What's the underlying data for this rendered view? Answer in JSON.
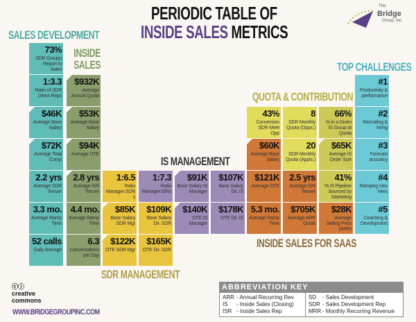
{
  "title": {
    "line1": "PERIODIC TABLE OF",
    "line2_a": "INSIDE SALES",
    "line2_b": "METRICS"
  },
  "logo": {
    "the": "The",
    "name": "Bridge",
    "suffix": "Group, Inc."
  },
  "sections": {
    "sales_development": "SALES DEVELOPMENT",
    "inside_sales": "INSIDE SALES",
    "is_management": "IS MANAGEMENT",
    "sdr_management": "SDR MANAGEMENT",
    "quota": "QUOTA & CONTRIBUTION",
    "saas": "INSIDE SALES FOR SAAS",
    "challenges": "TOP CHALLENGES"
  },
  "sd": [
    {
      "v": "73%",
      "l": "SDR Groups Report to Sales"
    },
    {
      "v": "1:3.3",
      "l": "Ratio of SDR Direct Reps"
    },
    {
      "v": "$46K",
      "l": "Average Base Salary"
    },
    {
      "v": "$72K",
      "l": "Average Total Comp"
    },
    {
      "v": "2.2 yrs",
      "l": "Average SDR Tenure"
    },
    {
      "v": "3.3 mo.",
      "l": "Average Ramp Time"
    },
    {
      "v": "52 calls",
      "l": "Daily Average"
    }
  ],
  "is": [
    {
      "v": "$932K",
      "l": "Average Annual Quota"
    },
    {
      "v": "$53K",
      "l": "Average Base Salary"
    },
    {
      "v": "$94K",
      "l": "Average OTE"
    },
    {
      "v": "2.8 yrs",
      "l": "Average ISR Tenure"
    },
    {
      "v": "4.4 mo.",
      "l": "Average Ramp Time"
    },
    {
      "v": "6.3",
      "l": "Conversations per Day"
    }
  ],
  "sdrm": [
    {
      "v": "1:6.5",
      "l": "Ratio Manager:SDRs"
    },
    {
      "v": "$85K",
      "l": "Base Salary SDR Mgr"
    },
    {
      "v": "$109K",
      "l": "Base Salary Dir. SDR"
    },
    {
      "v": "$122K",
      "l": "OTE SDR Mgr"
    },
    {
      "v": "$165K",
      "l": "OTE Dir. SDR"
    }
  ],
  "ism": [
    {
      "v": "1:7.3",
      "l": "Ratio Manager:ISRs"
    },
    {
      "v": "$91K",
      "l": "Base Salary IS Manager"
    },
    {
      "v": "$107K",
      "l": "Base Salary Dir. IS"
    },
    {
      "v": "$140K",
      "l": "OTE IS Manager"
    },
    {
      "v": "$178K",
      "l": "OTE Dir. IS"
    }
  ],
  "quota": [
    {
      "v": "43%",
      "l": "Conversion SDR Meet Opp"
    },
    {
      "v": "8",
      "l": "SDR Monthly Quota (Opps.)"
    },
    {
      "v": "66%",
      "l": "% in a Given IS Group at Quota"
    },
    {
      "v": "20",
      "l": "SDR Monthly Quota (Appts.)"
    },
    {
      "v": "$65K",
      "l": "Average IS Order Size"
    },
    {
      "v": "41%",
      "l": "% IS Pipeline Sourced by Marketing"
    }
  ],
  "saas": [
    {
      "v": "$60K",
      "l": "Average Base Salary"
    },
    {
      "v": "$121K",
      "l": "Average OTE"
    },
    {
      "v": "2.5 yrs",
      "l": "Average ISR Tenure"
    },
    {
      "v": "5.3 mo.",
      "l": "Average Ramp Time"
    },
    {
      "v": "$705K",
      "l": "Average ARR Quota"
    },
    {
      "v": "$28K",
      "l": "Average Selling Price (ARR)"
    }
  ],
  "challenges": [
    {
      "v": "#1",
      "l": "Productivity & performance"
    },
    {
      "v": "#2",
      "l": "Recruiting & hiring"
    },
    {
      "v": "#3",
      "l": "Forecast accuracy"
    },
    {
      "v": "#4",
      "l": "Ramping new hires"
    },
    {
      "v": "#5",
      "l": "Coaching & Development"
    }
  ],
  "footer": {
    "cc_line1": "creative",
    "cc_line2": "commons",
    "url": "WWW.BRIDGEGROUPINC.COM"
  },
  "key": {
    "title": "ABBREVIATION KEY",
    "left": [
      [
        "ARR",
        "- Annual Recurring Rev"
      ],
      [
        "IS",
        "- Inside Sales (Closing)"
      ],
      [
        "ISR",
        "- Inside Sales Rep"
      ]
    ],
    "right": [
      [
        "SD",
        "- Sales Development"
      ],
      [
        "SDR",
        "- Sales Development Rep"
      ],
      [
        "MRR",
        "- Monthly Recurring Revenue"
      ]
    ]
  },
  "colors": {
    "teal": "#5fbcb8",
    "green": "#8a9d6c",
    "yellow": "#e9c43d",
    "purple": "#9c8bb6",
    "orange": "#d07838",
    "cyan": "#6cc9d6",
    "title_purple": "#5a3e86"
  }
}
